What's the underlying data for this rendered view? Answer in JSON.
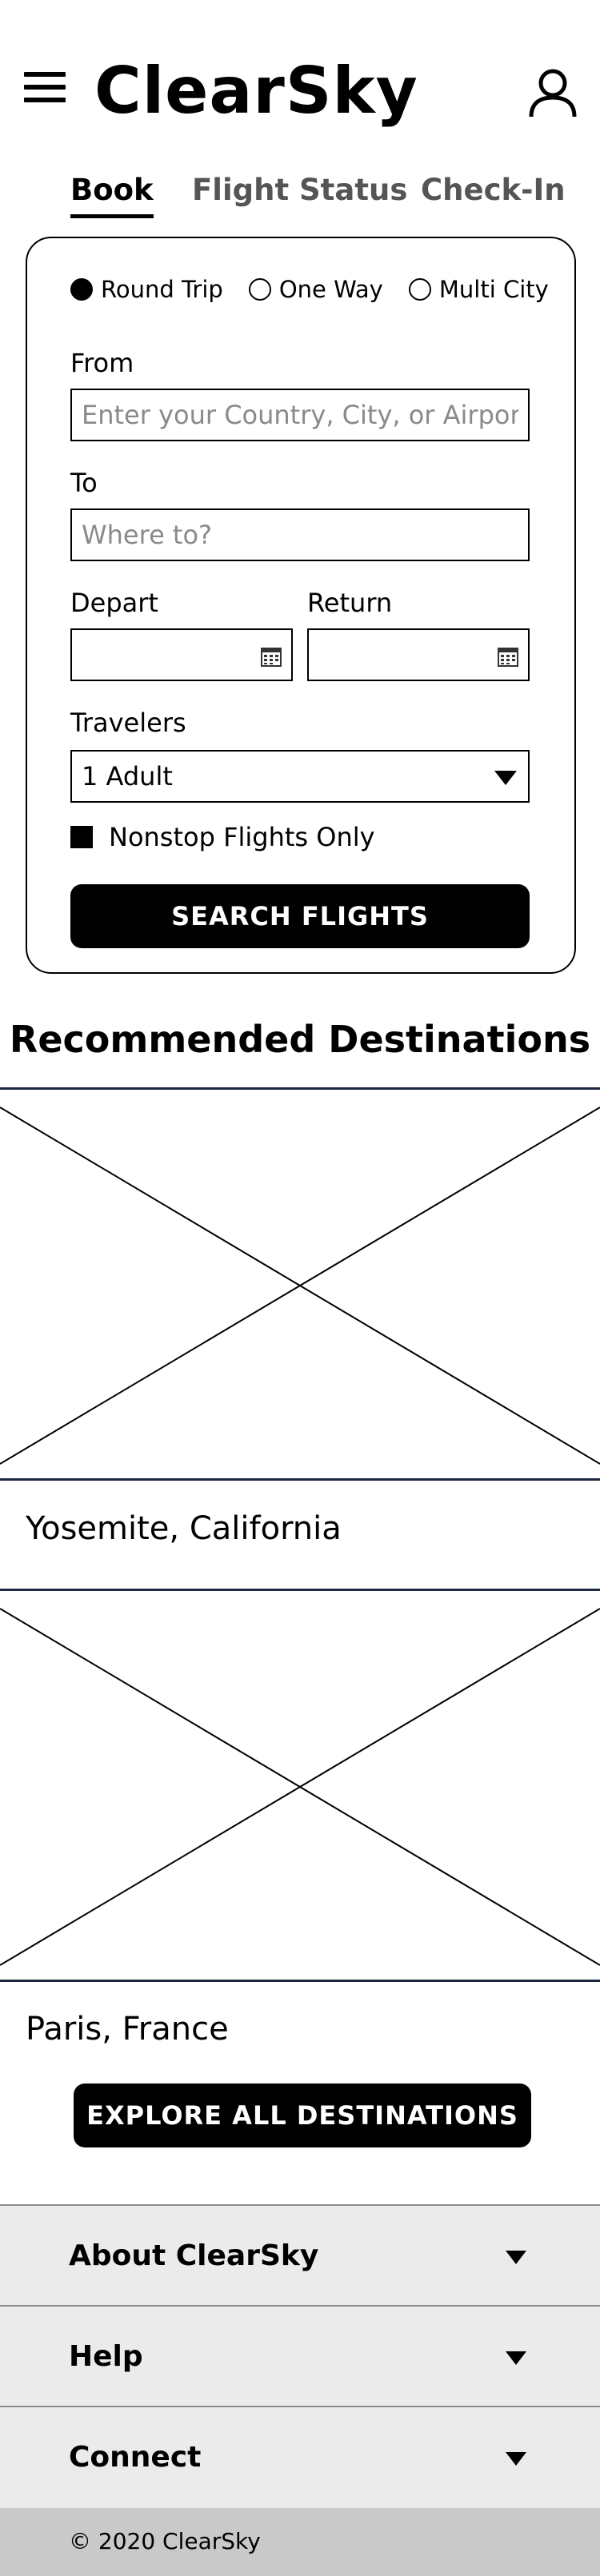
{
  "header": {
    "logo": "ClearSky",
    "menu_icon": "hamburger-menu-icon",
    "user_icon": "user-account-icon"
  },
  "tabs": [
    {
      "label": "Book",
      "active": true
    },
    {
      "label": "Flight Status",
      "active": false
    },
    {
      "label": "Check-In",
      "active": false
    }
  ],
  "booking": {
    "trip_types": [
      {
        "label": "Round Trip",
        "checked": true
      },
      {
        "label": "One Way",
        "checked": false
      },
      {
        "label": "Multi City",
        "checked": false
      }
    ],
    "from_label": "From",
    "from_placeholder": "Enter your Country, City, or Airport",
    "to_label": "To",
    "to_placeholder": "Where to?",
    "depart_label": "Depart",
    "return_label": "Return",
    "travelers_label": "Travelers",
    "travelers_value": "1 Adult",
    "nonstop_label": "Nonstop Flights Only",
    "nonstop_checked": true,
    "search_button": "SEARCH FLIGHTS"
  },
  "recommended": {
    "title": "Recommended Destinations",
    "destinations": [
      {
        "name": "Yosemite, California"
      },
      {
        "name": "Paris, France"
      }
    ],
    "explore_button": "EXPLORE ALL DESTINATIONS"
  },
  "footer": {
    "sections": [
      {
        "label": "About ClearSky"
      },
      {
        "label": "Help"
      },
      {
        "label": "Connect"
      }
    ],
    "copyright": "© 2020 ClearSky"
  },
  "colors": {
    "primary": "#000000",
    "footer_bg": "#ebebeb",
    "copyright_bg": "#c9c9c9",
    "image_border": "#1c2740"
  }
}
